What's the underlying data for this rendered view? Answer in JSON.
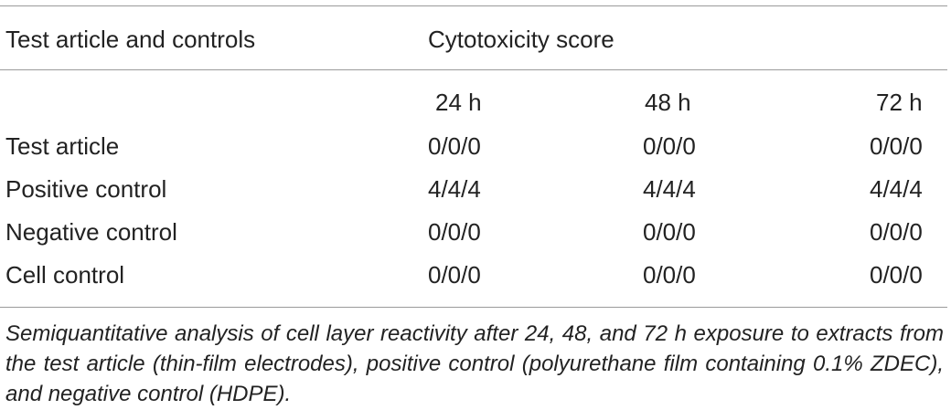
{
  "table": {
    "header": {
      "col1": "Test article and controls",
      "span": "Cytotoxicity score",
      "subheaders": [
        "24 h",
        "48 h",
        "72 h"
      ]
    },
    "rows": [
      {
        "label": "Test article",
        "values": [
          "0/0/0",
          "0/0/0",
          "0/0/0"
        ]
      },
      {
        "label": "Positive control",
        "values": [
          "4/4/4",
          "4/4/4",
          "4/4/4"
        ]
      },
      {
        "label": "Negative control",
        "values": [
          "0/0/0",
          "0/0/0",
          "0/0/0"
        ]
      },
      {
        "label": "Cell control",
        "values": [
          "0/0/0",
          "0/0/0",
          "0/0/0"
        ]
      }
    ]
  },
  "caption": "Semiquantitative analysis of cell layer reactivity after 24, 48, and 72 h exposure to extracts from the test article (thin-film electrodes), positive control (polyurethane film containing 0.1% ZDEC), and negative control (HDPE).",
  "colors": {
    "text": "#222222",
    "rule": "#9a9a9a",
    "background": "#ffffff"
  }
}
